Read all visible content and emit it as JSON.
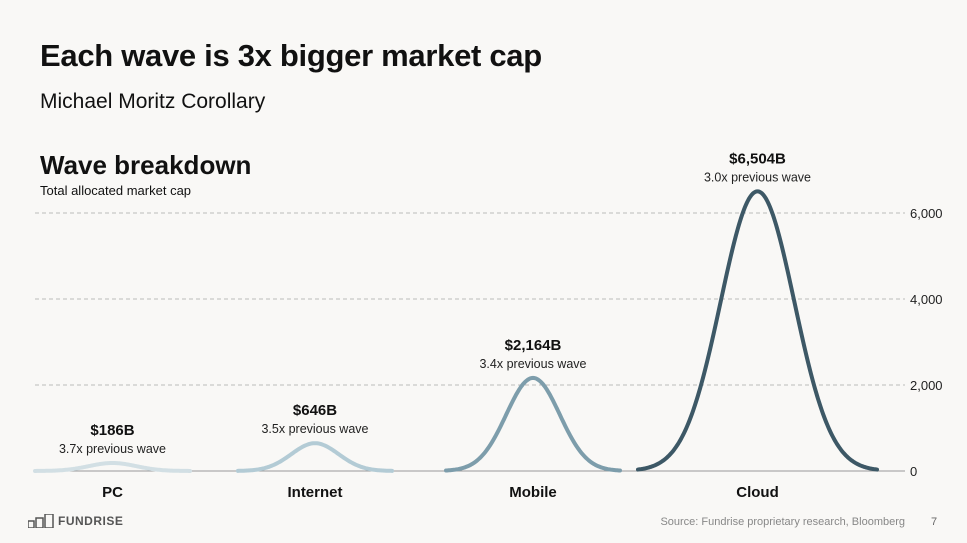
{
  "header": {
    "title": "Each wave is 3x bigger market cap",
    "subtitle": "Michael Moritz Corollary"
  },
  "chart_data": {
    "type": "area",
    "title": "Wave breakdown",
    "subtitle": "Total allocated market cap",
    "categories": [
      "PC",
      "Internet",
      "Mobile",
      "Cloud"
    ],
    "values": [
      186,
      646,
      2164,
      6504
    ],
    "value_labels": [
      "$186B",
      "$646B",
      "$2,164B",
      "$6,504B"
    ],
    "growth_labels": [
      "3.7x previous wave",
      "3.5x previous wave",
      "3.4x previous wave",
      "3.0x previous wave"
    ],
    "colors": [
      "#d2dfe4",
      "#b3cbd5",
      "#7d9dab",
      "#3d5866"
    ],
    "ylim": [
      0,
      6500
    ],
    "yticks": [
      0,
      2000,
      4000,
      6000
    ],
    "ytick_labels": [
      "0",
      "2,000",
      "4,000",
      "6,000"
    ],
    "grid": true
  },
  "footer": {
    "logo": "FUNDRISE",
    "source": "Source: Fundrise proprietary research, Bloomberg",
    "page": "7"
  }
}
